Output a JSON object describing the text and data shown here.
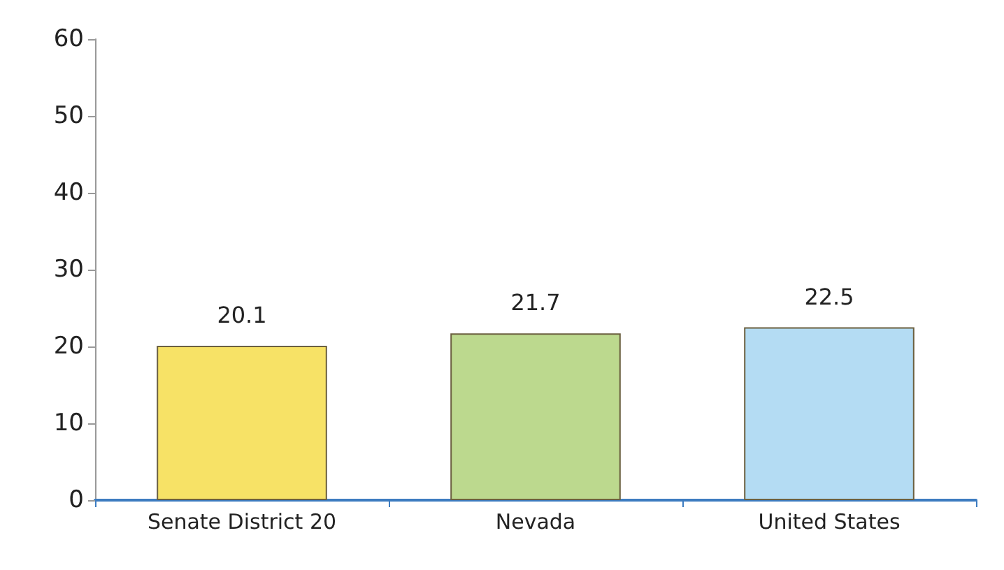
{
  "chart_data": {
    "type": "bar",
    "categories": [
      "Senate District 20",
      "Nevada",
      "United States"
    ],
    "values": [
      20.1,
      21.7,
      22.5
    ],
    "colors": [
      "#f7e266",
      "#bcd98e",
      "#b4dcf3"
    ],
    "ylim": [
      0,
      60
    ],
    "yticks": [
      0,
      10,
      20,
      30,
      40,
      50,
      60
    ],
    "grid": false,
    "data_labels": true
  }
}
